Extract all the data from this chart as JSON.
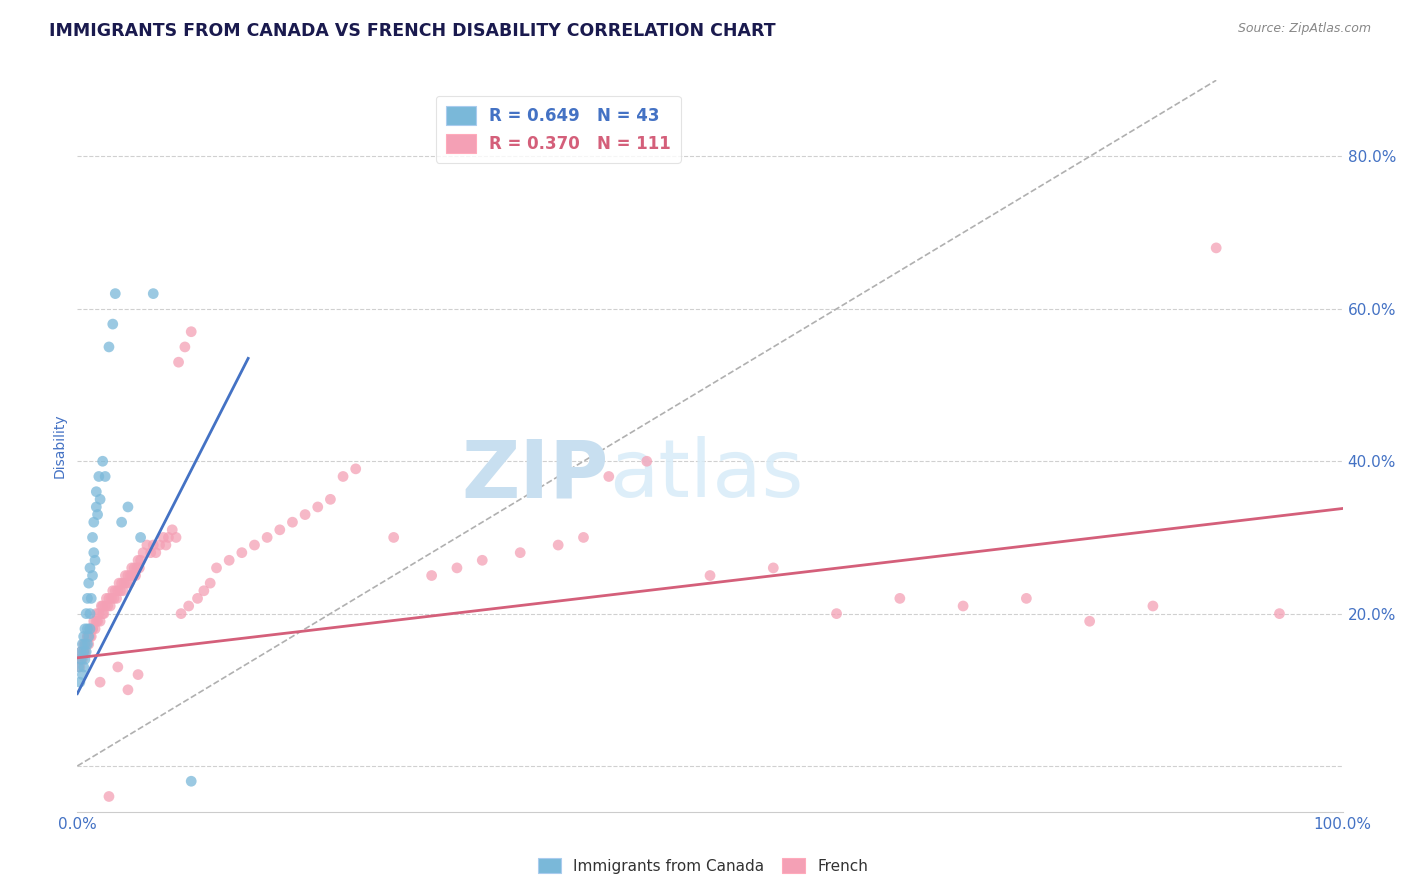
{
  "title": "IMMIGRANTS FROM CANADA VS FRENCH DISABILITY CORRELATION CHART",
  "source_text": "Source: ZipAtlas.com",
  "ylabel": "Disability",
  "xlim": [
    0.0,
    1.0
  ],
  "ylim": [
    -0.06,
    0.9
  ],
  "xticks": [
    0.0,
    0.2,
    0.4,
    0.6,
    0.8,
    1.0
  ],
  "yticks": [
    0.0,
    0.2,
    0.4,
    0.6,
    0.8
  ],
  "ytick_labels": [
    "",
    "20.0%",
    "40.0%",
    "60.0%",
    "80.0%"
  ],
  "xtick_labels": [
    "0.0%",
    "",
    "",
    "",
    "",
    "100.0%"
  ],
  "blue_R": 0.649,
  "blue_N": 43,
  "pink_R": 0.37,
  "pink_N": 111,
  "blue_color": "#7ab8d9",
  "pink_color": "#f4a0b5",
  "blue_line_color": "#4472c4",
  "pink_line_color": "#d45f7a",
  "ref_line_color": "#b0b0b0",
  "background_color": "#ffffff",
  "grid_color": "#d0d0d0",
  "title_color": "#1a1a4e",
  "axis_label_color": "#4472c4",
  "watermark_zip": "ZIP",
  "watermark_atlas": "atlas",
  "watermark_color": "#c8dff0",
  "blue_line_x": [
    0.0,
    0.135
  ],
  "blue_line_y": [
    0.095,
    0.535
  ],
  "pink_line_x": [
    0.0,
    1.0
  ],
  "pink_line_y": [
    0.142,
    0.338
  ],
  "ref_line_x": [
    0.0,
    0.9
  ],
  "ref_line_y": [
    0.0,
    0.9
  ],
  "blue_scatter_x": [
    0.001,
    0.002,
    0.003,
    0.003,
    0.004,
    0.004,
    0.005,
    0.005,
    0.005,
    0.006,
    0.006,
    0.006,
    0.007,
    0.007,
    0.008,
    0.008,
    0.008,
    0.009,
    0.009,
    0.01,
    0.01,
    0.01,
    0.011,
    0.012,
    0.012,
    0.013,
    0.013,
    0.014,
    0.015,
    0.015,
    0.016,
    0.017,
    0.018,
    0.02,
    0.022,
    0.025,
    0.028,
    0.03,
    0.035,
    0.04,
    0.05,
    0.06,
    0.09
  ],
  "blue_scatter_y": [
    0.13,
    0.11,
    0.14,
    0.15,
    0.12,
    0.16,
    0.13,
    0.15,
    0.17,
    0.14,
    0.16,
    0.18,
    0.15,
    0.2,
    0.16,
    0.18,
    0.22,
    0.17,
    0.24,
    0.18,
    0.2,
    0.26,
    0.22,
    0.25,
    0.3,
    0.28,
    0.32,
    0.27,
    0.34,
    0.36,
    0.33,
    0.38,
    0.35,
    0.4,
    0.38,
    0.55,
    0.58,
    0.62,
    0.32,
    0.34,
    0.3,
    0.62,
    -0.02
  ],
  "pink_scatter_x": [
    0.001,
    0.002,
    0.003,
    0.004,
    0.005,
    0.005,
    0.006,
    0.007,
    0.008,
    0.009,
    0.01,
    0.01,
    0.011,
    0.012,
    0.013,
    0.014,
    0.015,
    0.015,
    0.016,
    0.017,
    0.018,
    0.019,
    0.02,
    0.02,
    0.021,
    0.022,
    0.023,
    0.024,
    0.025,
    0.026,
    0.027,
    0.028,
    0.029,
    0.03,
    0.031,
    0.032,
    0.033,
    0.034,
    0.035,
    0.036,
    0.037,
    0.038,
    0.039,
    0.04,
    0.041,
    0.042,
    0.043,
    0.044,
    0.045,
    0.046,
    0.047,
    0.048,
    0.049,
    0.05,
    0.052,
    0.055,
    0.058,
    0.06,
    0.062,
    0.065,
    0.068,
    0.07,
    0.072,
    0.075,
    0.078,
    0.08,
    0.082,
    0.085,
    0.088,
    0.09,
    0.095,
    0.1,
    0.105,
    0.11,
    0.12,
    0.13,
    0.14,
    0.15,
    0.16,
    0.17,
    0.18,
    0.19,
    0.2,
    0.21,
    0.22,
    0.25,
    0.28,
    0.3,
    0.32,
    0.35,
    0.38,
    0.4,
    0.42,
    0.45,
    0.5,
    0.55,
    0.6,
    0.65,
    0.7,
    0.75,
    0.8,
    0.85,
    0.9,
    0.95,
    0.008,
    0.012,
    0.018,
    0.025,
    0.032,
    0.04,
    0.048
  ],
  "pink_scatter_y": [
    0.14,
    0.13,
    0.15,
    0.14,
    0.15,
    0.16,
    0.15,
    0.16,
    0.17,
    0.16,
    0.17,
    0.18,
    0.17,
    0.18,
    0.19,
    0.18,
    0.19,
    0.2,
    0.19,
    0.2,
    0.19,
    0.21,
    0.2,
    0.21,
    0.2,
    0.21,
    0.22,
    0.21,
    0.22,
    0.21,
    0.22,
    0.23,
    0.22,
    0.23,
    0.22,
    0.23,
    0.24,
    0.23,
    0.24,
    0.23,
    0.24,
    0.25,
    0.24,
    0.25,
    0.24,
    0.25,
    0.26,
    0.25,
    0.26,
    0.25,
    0.26,
    0.27,
    0.26,
    0.27,
    0.28,
    0.29,
    0.28,
    0.29,
    0.28,
    0.29,
    0.3,
    0.29,
    0.3,
    0.31,
    0.3,
    0.53,
    0.2,
    0.55,
    0.21,
    0.57,
    0.22,
    0.23,
    0.24,
    0.26,
    0.27,
    0.28,
    0.29,
    0.3,
    0.31,
    0.32,
    0.33,
    0.34,
    0.35,
    0.38,
    0.39,
    0.3,
    0.25,
    0.26,
    0.27,
    0.28,
    0.29,
    0.3,
    0.38,
    0.4,
    0.25,
    0.26,
    0.2,
    0.22,
    0.21,
    0.22,
    0.19,
    0.21,
    0.68,
    0.2,
    0.17,
    0.18,
    0.11,
    -0.04,
    0.13,
    0.1,
    0.12
  ]
}
